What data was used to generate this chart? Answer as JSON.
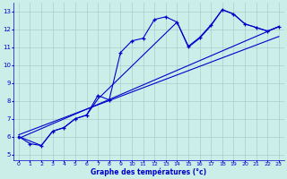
{
  "xlabel": "Graphe des températures (°c)",
  "bg": "#cceee8",
  "grid_color": "#aacccc",
  "lc": "#0000cc",
  "xlim": [
    -0.5,
    23.5
  ],
  "ylim": [
    4.7,
    13.5
  ],
  "xticks": [
    0,
    1,
    2,
    3,
    4,
    5,
    6,
    7,
    8,
    9,
    10,
    11,
    12,
    13,
    14,
    15,
    16,
    17,
    18,
    19,
    20,
    21,
    22,
    23
  ],
  "yticks": [
    5,
    6,
    7,
    8,
    9,
    10,
    11,
    12,
    13
  ],
  "curve_x": [
    0,
    1,
    2,
    3,
    4,
    5,
    6,
    7,
    8,
    9,
    10,
    11,
    12,
    13,
    14,
    15,
    16,
    17,
    18,
    19,
    20,
    21,
    22,
    23
  ],
  "curve_y": [
    6.0,
    5.6,
    5.5,
    6.3,
    6.5,
    7.0,
    7.2,
    8.3,
    8.05,
    10.7,
    11.35,
    11.5,
    12.55,
    12.7,
    12.4,
    11.05,
    11.55,
    12.25,
    13.1,
    12.85,
    12.3,
    12.1,
    11.9,
    12.15
  ],
  "trend_line1_x": [
    0,
    23
  ],
  "trend_line1_y": [
    5.9,
    12.15
  ],
  "trend_line2_x": [
    0,
    23
  ],
  "trend_line2_y": [
    6.1,
    11.6
  ],
  "smooth_x": [
    0,
    2,
    3,
    4,
    5,
    6,
    7,
    14,
    15,
    16,
    17,
    18,
    19,
    20,
    21,
    22,
    23
  ],
  "smooth_y": [
    6.0,
    5.5,
    6.3,
    6.5,
    7.0,
    7.2,
    8.1,
    12.4,
    11.0,
    11.5,
    12.2,
    13.1,
    12.85,
    12.3,
    12.1,
    11.9,
    12.15
  ]
}
